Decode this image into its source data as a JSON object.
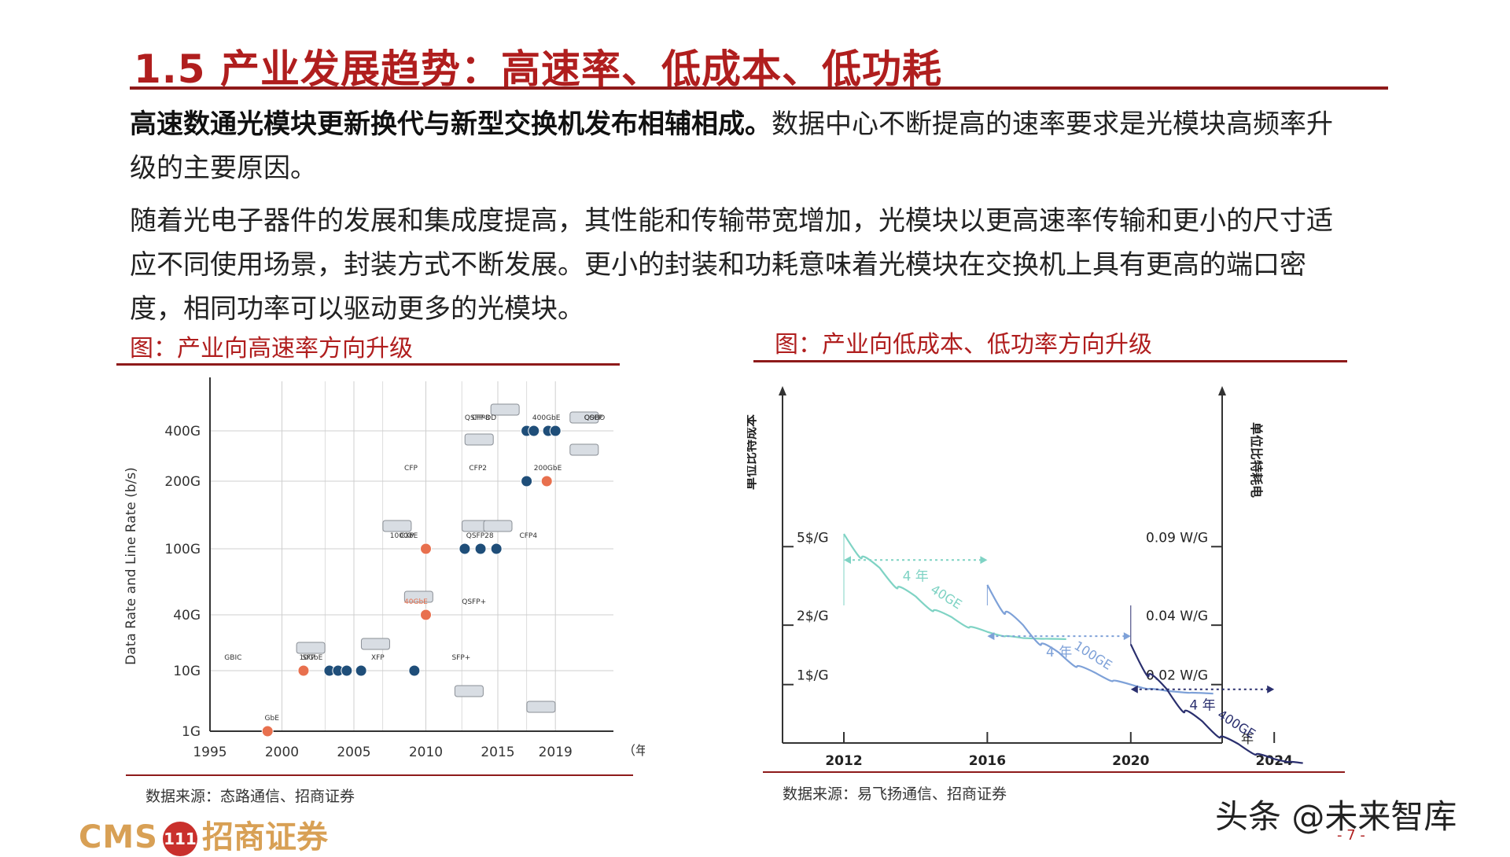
{
  "title": "1.5 产业发展趋势：高速率、低成本、低功耗",
  "para1": {
    "bold": "高速数通光模块更新换代与新型交换机发布相辅相成。",
    "rest": "数据中心不断提高的速率要求是光模块高频率升级的主要原因。"
  },
  "para2": "随着光电子器件的发展和集成度提高，其性能和传输带宽增加，光模块以更高速率传输和更小的尺寸适应不同使用场景，封装方式不断发展。更小的封装和功耗意味着光模块在交换机上具有更高的端口密度，相同功率可以驱动更多的光模块。",
  "figures": [
    {
      "caption": "图：产业向高速率方向升级",
      "source": "数据来源：态路通信、招商证券"
    },
    {
      "caption": "图：产业向低成本、低功率方向升级",
      "source": "数据来源：易飞扬通信、招商证券"
    }
  ],
  "chart_data": [
    {
      "type": "scatter",
      "ylabel": "Data Rate and Line Rate (b/s)",
      "x_unit": "（年）",
      "x_ticks": [
        "1995",
        "2000",
        "2005",
        "2010",
        "2015",
        "2019"
      ],
      "y_ticks": [
        "1G",
        "10G",
        "40G",
        "100G",
        "200G",
        "400G"
      ],
      "point_colors": {
        "orange": "#e8704e",
        "blue": "#1f4e79"
      },
      "points": [
        {
          "x": 1999,
          "y": "1G",
          "color": "orange"
        },
        {
          "x": 2001.5,
          "y": "10G",
          "color": "orange"
        },
        {
          "x": 2003.3,
          "y": "10G",
          "color": "blue"
        },
        {
          "x": 2003.9,
          "y": "10G",
          "color": "blue"
        },
        {
          "x": 2004.5,
          "y": "10G",
          "color": "blue"
        },
        {
          "x": 2005.5,
          "y": "10G",
          "color": "blue"
        },
        {
          "x": 2009.2,
          "y": "10G",
          "color": "blue"
        },
        {
          "x": 2010,
          "y": "40G",
          "color": "orange"
        },
        {
          "x": 2010,
          "y": "100G",
          "color": "orange"
        },
        {
          "x": 2012.7,
          "y": "100G",
          "color": "blue"
        },
        {
          "x": 2013.8,
          "y": "100G",
          "color": "blue"
        },
        {
          "x": 2014.9,
          "y": "100G",
          "color": "blue"
        },
        {
          "x": 2017,
          "y": "200G",
          "color": "blue"
        },
        {
          "x": 2018.4,
          "y": "200G",
          "color": "orange"
        },
        {
          "x": 2017,
          "y": "400G",
          "color": "blue"
        },
        {
          "x": 2017.5,
          "y": "400G",
          "color": "blue"
        },
        {
          "x": 2018.5,
          "y": "400G",
          "color": "blue"
        },
        {
          "x": 2019,
          "y": "400G",
          "color": "blue"
        }
      ],
      "annotations": [
        {
          "text": "GbE",
          "x": 1998.8,
          "y": "1G"
        },
        {
          "text": "GBIC",
          "x": 1996,
          "y": "10G"
        },
        {
          "text": "SFP",
          "x": 2001.4,
          "y": "10G"
        },
        {
          "text": "10GbE",
          "x": 2001.2,
          "y": "10G"
        },
        {
          "text": "XFP",
          "x": 2006.2,
          "y": "10G"
        },
        {
          "text": "SFP+",
          "x": 2011.8,
          "y": "10G"
        },
        {
          "text": "QSFP+",
          "x": 2012.5,
          "y": "40G"
        },
        {
          "text": "40GbE",
          "x": 2008.5,
          "y": "40G",
          "color": "orange"
        },
        {
          "text": "100GbE",
          "x": 2007.5,
          "y": "100G"
        },
        {
          "text": "CXP",
          "x": 2008.2,
          "y": "100G"
        },
        {
          "text": "QSFP28",
          "x": 2012.8,
          "y": "100G"
        },
        {
          "text": "CFP",
          "x": 2008.5,
          "y": "200G"
        },
        {
          "text": "CFP2",
          "x": 2013,
          "y": "200G"
        },
        {
          "text": "CFP4",
          "x": 2016.5,
          "y": "100G"
        },
        {
          "text": "200GbE",
          "x": 2017.5,
          "y": "200G"
        },
        {
          "text": "QSFP-DD",
          "x": 2012.7,
          "y": "400G"
        },
        {
          "text": "CFP8",
          "x": 2013.2,
          "y": "400G"
        },
        {
          "text": "400GbE",
          "x": 2017.4,
          "y": "400G"
        },
        {
          "text": "COBO",
          "x": 2021,
          "y": "400G"
        },
        {
          "text": "QSFP",
          "x": 2021,
          "y": "400G"
        }
      ]
    },
    {
      "type": "line",
      "ylabel_left": "单位比特成本",
      "ylabel_right": "单位比特耗电",
      "x_unit": "年",
      "x_ticks": [
        "2012",
        "2016",
        "2020",
        "2024"
      ],
      "y_ticks_left": [
        "5$/G",
        "2$/G",
        "1$/G"
      ],
      "y_ticks_right": [
        "0.09 W/G",
        "0.04 W/G",
        "0.02 W/G"
      ],
      "series": [
        {
          "name": "40GE",
          "color": "#7fd3c4",
          "x": [
            2012,
            2013,
            2014,
            2015,
            2016,
            2017,
            2018.2
          ],
          "y": [
            5.8,
            3.9,
            2.8,
            2.2,
            1.85,
            1.72,
            1.7
          ]
        },
        {
          "name": "100GE",
          "color": "#7ea1d8",
          "x": [
            2016,
            2017,
            2018,
            2019,
            2020,
            2021,
            2022.3
          ],
          "y": [
            3.2,
            2.0,
            1.45,
            1.15,
            1.0,
            0.93,
            0.9
          ]
        },
        {
          "name": "400GE",
          "color": "#2a2f6e",
          "x": [
            2020,
            2021,
            2022,
            2023,
            2024,
            2024.8
          ],
          "y": [
            1.6,
            0.95,
            0.65,
            0.5,
            0.42,
            0.4
          ]
        }
      ],
      "spans": [
        {
          "label": "4 年",
          "from": 2012,
          "to": 2016
        },
        {
          "label": "4 年",
          "from": 2016,
          "to": 2020
        },
        {
          "label": "4 年",
          "from": 2020,
          "to": 2024
        }
      ]
    }
  ],
  "footer": {
    "logo_cms": "CMS",
    "logo_badge": "111",
    "logo_name": "招商证券",
    "watermark": "头条 @未来智库",
    "page": "- 7 -"
  }
}
